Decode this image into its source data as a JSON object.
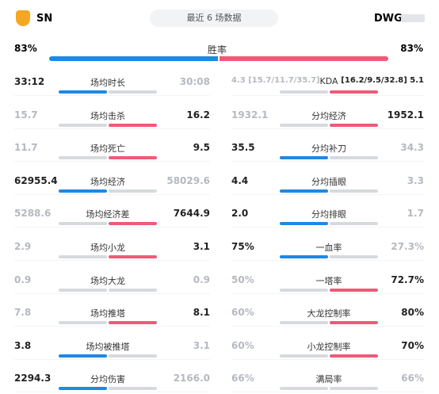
{
  "header": {
    "team_left": "SN",
    "center": "最近 6 场数据",
    "team_right": "DWG"
  },
  "win_rate": {
    "left": "83%",
    "label": "胜率",
    "right": "83%"
  },
  "columns": [
    {
      "rows": [
        {
          "left": "33:12",
          "label": "场均时长",
          "right": "30:08",
          "winner": "left"
        },
        {
          "left": "15.7",
          "label": "场均击杀",
          "right": "16.2",
          "winner": "right"
        },
        {
          "left": "11.7",
          "label": "场均死亡",
          "right": "9.5",
          "winner": "right"
        },
        {
          "left": "62955.4",
          "label": "场均经济",
          "right": "58029.6",
          "winner": "left"
        },
        {
          "left": "5288.6",
          "label": "场均经济差",
          "right": "7644.9",
          "winner": "right"
        },
        {
          "left": "2.9",
          "label": "场均小龙",
          "right": "3.1",
          "winner": "right"
        },
        {
          "left": "0.9",
          "label": "场均大龙",
          "right": "0.9",
          "winner": "none"
        },
        {
          "left": "7.8",
          "label": "场均推塔",
          "right": "8.1",
          "winner": "right"
        },
        {
          "left": "3.8",
          "label": "场均被推塔",
          "right": "3.1",
          "winner": "left"
        },
        {
          "left": "2294.3",
          "label": "分均伤害",
          "right": "2166.0",
          "winner": "left"
        }
      ]
    },
    {
      "rows": [
        {
          "left": "4.3 [15.7/11.7/35.7]",
          "label": "KDA",
          "right": "[16.2/9.5/32.8] 5.1",
          "winner": "right"
        },
        {
          "left": "1932.1",
          "label": "分均经济",
          "right": "1952.1",
          "winner": "right"
        },
        {
          "left": "35.5",
          "label": "分均补刀",
          "right": "34.3",
          "winner": "left"
        },
        {
          "left": "4.4",
          "label": "分均插眼",
          "right": "3.3",
          "winner": "left"
        },
        {
          "left": "2.0",
          "label": "分均排眼",
          "right": "1.7",
          "winner": "left"
        },
        {
          "left": "75%",
          "label": "一血率",
          "right": "27.3%",
          "winner": "left"
        },
        {
          "left": "50%",
          "label": "一塔率",
          "right": "72.7%",
          "winner": "right"
        },
        {
          "left": "60%",
          "label": "大龙控制率",
          "right": "80%",
          "winner": "right"
        },
        {
          "left": "60%",
          "label": "小龙控制率",
          "right": "70%",
          "winner": "right"
        },
        {
          "left": "66%",
          "label": "满局率",
          "right": "66%",
          "winner": "none"
        }
      ]
    }
  ]
}
